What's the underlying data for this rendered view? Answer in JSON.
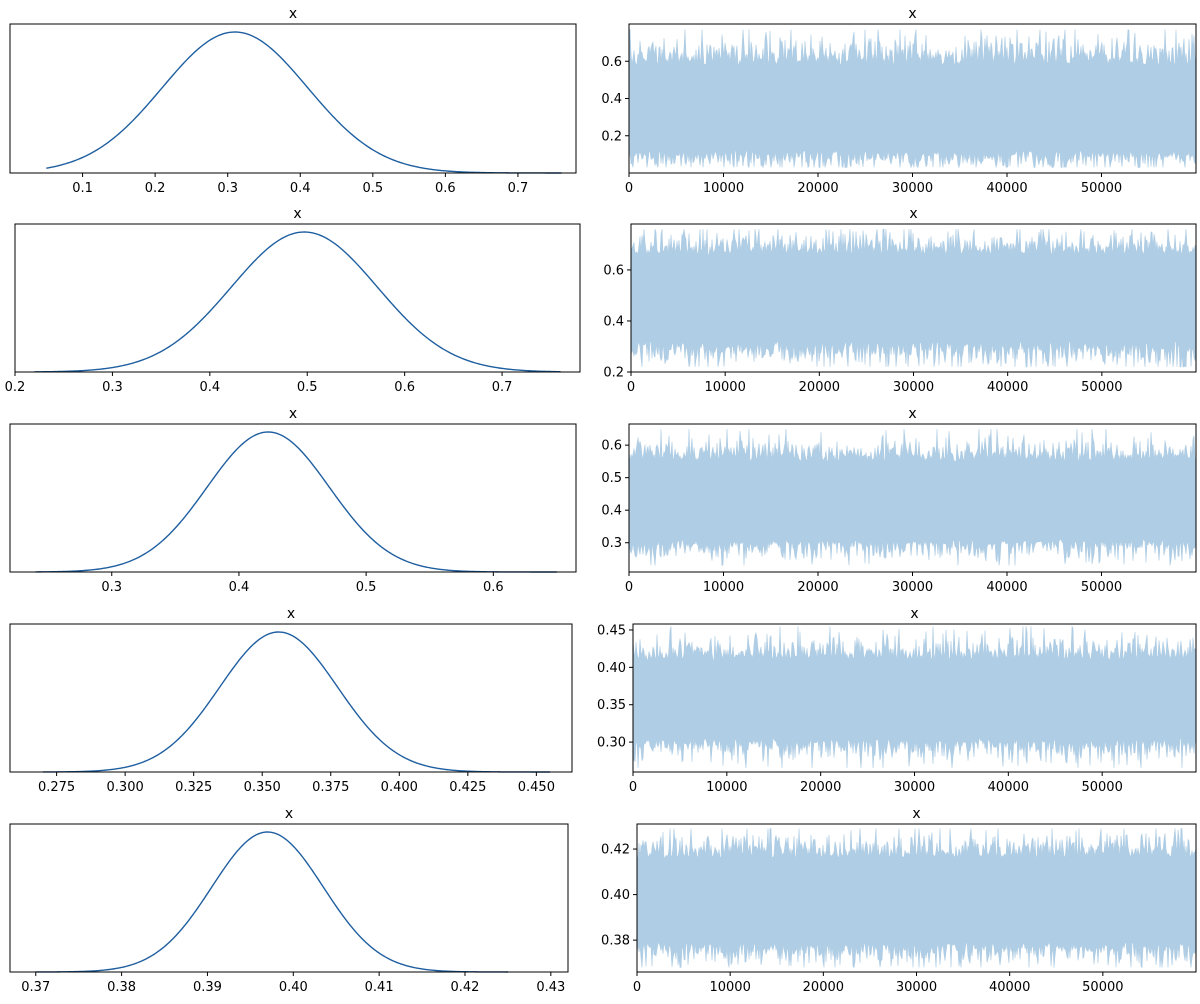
{
  "figure": {
    "colors": {
      "kde_line": "#1f5fa0",
      "trace_fill": "#afcde4",
      "axis": "#000000",
      "background": "#ffffff"
    }
  },
  "chart_data": [
    {
      "panel": "kde",
      "row": 0,
      "type": "line",
      "title": "x",
      "xlim": [
        0.0,
        0.78
      ],
      "xticks": [
        0.1,
        0.2,
        0.3,
        0.4,
        0.5,
        0.6,
        0.7
      ],
      "xtick_labels": [
        "0.1",
        "0.2",
        "0.3",
        "0.4",
        "0.5",
        "0.6",
        "0.7"
      ],
      "density": {
        "mean": 0.31,
        "sd": 0.1,
        "range": [
          0.05,
          0.76
        ]
      }
    },
    {
      "panel": "trace",
      "row": 0,
      "type": "area",
      "title": "x",
      "xlim": [
        0,
        59999
      ],
      "ylim": [
        0.0,
        0.8
      ],
      "xticks": [
        0,
        10000,
        20000,
        30000,
        40000,
        50000
      ],
      "xtick_labels": [
        "0",
        "10000",
        "20000",
        "30000",
        "40000",
        "50000"
      ],
      "yticks": [
        0.2,
        0.4,
        0.6
      ],
      "ytick_labels": [
        "0.2",
        "0.4",
        "0.6"
      ],
      "band": {
        "low": 0.03,
        "high": 0.77,
        "typ_low": 0.12,
        "typ_high": 0.58,
        "mean": 0.31
      }
    },
    {
      "panel": "kde",
      "row": 1,
      "type": "line",
      "title": "x",
      "xlim": [
        0.2,
        0.78
      ],
      "xticks": [
        0.2,
        0.3,
        0.4,
        0.5,
        0.6,
        0.7
      ],
      "xtick_labels": [
        "0.2",
        "0.3",
        "0.4",
        "0.5",
        "0.6",
        "0.7"
      ],
      "density": {
        "mean": 0.497,
        "sd": 0.075,
        "range": [
          0.22,
          0.76
        ]
      }
    },
    {
      "panel": "trace",
      "row": 1,
      "type": "area",
      "title": "x",
      "xlim": [
        0,
        59999
      ],
      "ylim": [
        0.2,
        0.78
      ],
      "xticks": [
        0,
        10000,
        20000,
        30000,
        40000,
        50000
      ],
      "xtick_labels": [
        "0",
        "10000",
        "20000",
        "30000",
        "40000",
        "50000"
      ],
      "yticks": [
        0.2,
        0.4,
        0.6
      ],
      "ytick_labels": [
        "0.2",
        "0.4",
        "0.6"
      ],
      "band": {
        "low": 0.22,
        "high": 0.76,
        "typ_low": 0.32,
        "typ_high": 0.66,
        "mean": 0.497
      }
    },
    {
      "panel": "kde",
      "row": 2,
      "type": "line",
      "title": "x",
      "xlim": [
        0.22,
        0.665
      ],
      "xticks": [
        0.3,
        0.4,
        0.5,
        0.6
      ],
      "xtick_labels": [
        "0.3",
        "0.4",
        "0.5",
        "0.6"
      ],
      "density": {
        "mean": 0.423,
        "sd": 0.048,
        "range": [
          0.24,
          0.65
        ]
      }
    },
    {
      "panel": "trace",
      "row": 2,
      "type": "area",
      "title": "x",
      "xlim": [
        0,
        59999
      ],
      "ylim": [
        0.21,
        0.665
      ],
      "xticks": [
        0,
        10000,
        20000,
        30000,
        40000,
        50000
      ],
      "xtick_labels": [
        "0",
        "10000",
        "20000",
        "30000",
        "40000",
        "50000"
      ],
      "yticks": [
        0.3,
        0.4,
        0.5,
        0.6
      ],
      "ytick_labels": [
        "0.3",
        "0.4",
        "0.5",
        "0.6"
      ],
      "band": {
        "low": 0.23,
        "high": 0.65,
        "typ_low": 0.31,
        "typ_high": 0.55,
        "mean": 0.423
      }
    },
    {
      "panel": "kde",
      "row": 3,
      "type": "line",
      "title": "x",
      "xlim": [
        0.258,
        0.463
      ],
      "xticks": [
        0.275,
        0.3,
        0.325,
        0.35,
        0.375,
        0.4,
        0.425,
        0.45
      ],
      "xtick_labels": [
        "0.275",
        "0.300",
        "0.325",
        "0.350",
        "0.375",
        "0.400",
        "0.425",
        "0.450"
      ],
      "density": {
        "mean": 0.356,
        "sd": 0.0215,
        "range": [
          0.27,
          0.455
        ]
      }
    },
    {
      "panel": "trace",
      "row": 3,
      "type": "area",
      "title": "x",
      "xlim": [
        0,
        59999
      ],
      "ylim": [
        0.26,
        0.458
      ],
      "xticks": [
        0,
        10000,
        20000,
        30000,
        40000,
        50000
      ],
      "xtick_labels": [
        "0",
        "10000",
        "20000",
        "30000",
        "40000",
        "50000"
      ],
      "yticks": [
        0.3,
        0.35,
        0.4,
        0.45
      ],
      "ytick_labels": [
        "0.30",
        "0.35",
        "0.40",
        "0.45"
      ],
      "band": {
        "low": 0.265,
        "high": 0.455,
        "typ_low": 0.305,
        "typ_high": 0.41,
        "mean": 0.356
      }
    },
    {
      "panel": "kde",
      "row": 4,
      "type": "line",
      "title": "x",
      "xlim": [
        0.367,
        0.432
      ],
      "xticks": [
        0.37,
        0.38,
        0.39,
        0.4,
        0.41,
        0.42,
        0.43
      ],
      "xtick_labels": [
        "0.37",
        "0.38",
        "0.39",
        "0.40",
        "0.41",
        "0.42",
        "0.43"
      ],
      "density": {
        "mean": 0.397,
        "sd": 0.0065,
        "range": [
          0.37,
          0.425
        ]
      }
    },
    {
      "panel": "trace",
      "row": 4,
      "type": "area",
      "title": "x",
      "xlim": [
        0,
        59999
      ],
      "ylim": [
        0.366,
        0.431
      ],
      "xticks": [
        0,
        10000,
        20000,
        30000,
        40000,
        50000
      ],
      "xtick_labels": [
        "0",
        "10000",
        "20000",
        "30000",
        "40000",
        "50000"
      ],
      "yticks": [
        0.38,
        0.4,
        0.42
      ],
      "ytick_labels": [
        "0.38",
        "0.40",
        "0.42"
      ],
      "band": {
        "low": 0.368,
        "high": 0.429,
        "typ_low": 0.379,
        "typ_high": 0.416,
        "mean": 0.397
      }
    }
  ]
}
